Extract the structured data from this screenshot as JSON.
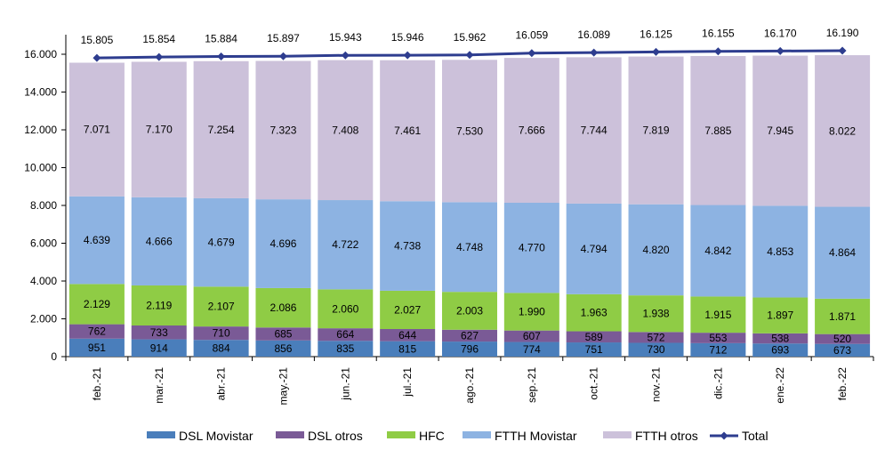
{
  "chart_data": {
    "type": "bar",
    "stacked": true,
    "categories": [
      "feb.-21",
      "mar.-21",
      "abr.-21",
      "may.-21",
      "jun.-21",
      "jul.-21",
      "ago.-21",
      "sep.-21",
      "oct.-21",
      "nov.-21",
      "dic.-21",
      "ene.-22",
      "feb.-22"
    ],
    "series": [
      {
        "name": "DSL Movistar",
        "color": "#4a7ebb",
        "values": [
          951,
          914,
          884,
          856,
          835,
          815,
          796,
          774,
          751,
          730,
          712,
          693,
          673
        ],
        "labels": [
          "951",
          "914",
          "884",
          "856",
          "835",
          "815",
          "796",
          "774",
          "751",
          "730",
          "712",
          "693",
          "673"
        ]
      },
      {
        "name": "DSL otros",
        "color": "#7a5a96",
        "values": [
          762,
          733,
          710,
          685,
          664,
          644,
          627,
          607,
          589,
          572,
          553,
          538,
          520
        ],
        "labels": [
          "762",
          "733",
          "710",
          "685",
          "664",
          "644",
          "627",
          "607",
          "589",
          "572",
          "553",
          "538",
          "520"
        ]
      },
      {
        "name": "HFC",
        "color": "#8fcc45",
        "values": [
          2129,
          2119,
          2107,
          2086,
          2060,
          2027,
          2003,
          1990,
          1963,
          1938,
          1915,
          1897,
          1871
        ],
        "labels": [
          "2.129",
          "2.119",
          "2.107",
          "2.086",
          "2.060",
          "2.027",
          "2.003",
          "1.990",
          "1.963",
          "1.938",
          "1.915",
          "1.897",
          "1.871"
        ]
      },
      {
        "name": "FTTH Movistar",
        "color": "#8db3e2",
        "values": [
          4639,
          4666,
          4679,
          4696,
          4722,
          4738,
          4748,
          4770,
          4794,
          4820,
          4842,
          4853,
          4864
        ],
        "labels": [
          "4.639",
          "4.666",
          "4.679",
          "4.696",
          "4.722",
          "4.738",
          "4.748",
          "4.770",
          "4.794",
          "4.820",
          "4.842",
          "4.853",
          "4.864"
        ]
      },
      {
        "name": "FTTH otros",
        "color": "#ccc1da",
        "values": [
          7071,
          7170,
          7254,
          7323,
          7408,
          7461,
          7530,
          7666,
          7744,
          7819,
          7885,
          7945,
          8022
        ],
        "labels": [
          "7.071",
          "7.170",
          "7.254",
          "7.323",
          "7.408",
          "7.461",
          "7.530",
          "7.666",
          "7.744",
          "7.819",
          "7.885",
          "7.945",
          "8.022"
        ]
      }
    ],
    "line": {
      "name": "Total",
      "color": "#2e3d8f",
      "values": [
        15805,
        15854,
        15884,
        15897,
        15943,
        15946,
        15962,
        16059,
        16089,
        16125,
        16155,
        16170,
        16190
      ],
      "labels": [
        "15.805",
        "15.854",
        "15.884",
        "15.897",
        "15.943",
        "15.946",
        "15.962",
        "16.059",
        "16.089",
        "16.125",
        "16.155",
        "16.170",
        "16.190"
      ]
    },
    "ylim": [
      0,
      16000
    ],
    "yticks": [
      0,
      2000,
      4000,
      6000,
      8000,
      10000,
      12000,
      14000,
      16000
    ],
    "ytick_labels": [
      "0",
      "2.000",
      "4.000",
      "6.000",
      "8.000",
      "10.000",
      "12.000",
      "14.000",
      "16.000"
    ],
    "grid": false,
    "legend_position": "bottom",
    "title": "",
    "xlabel": "",
    "ylabel": ""
  }
}
